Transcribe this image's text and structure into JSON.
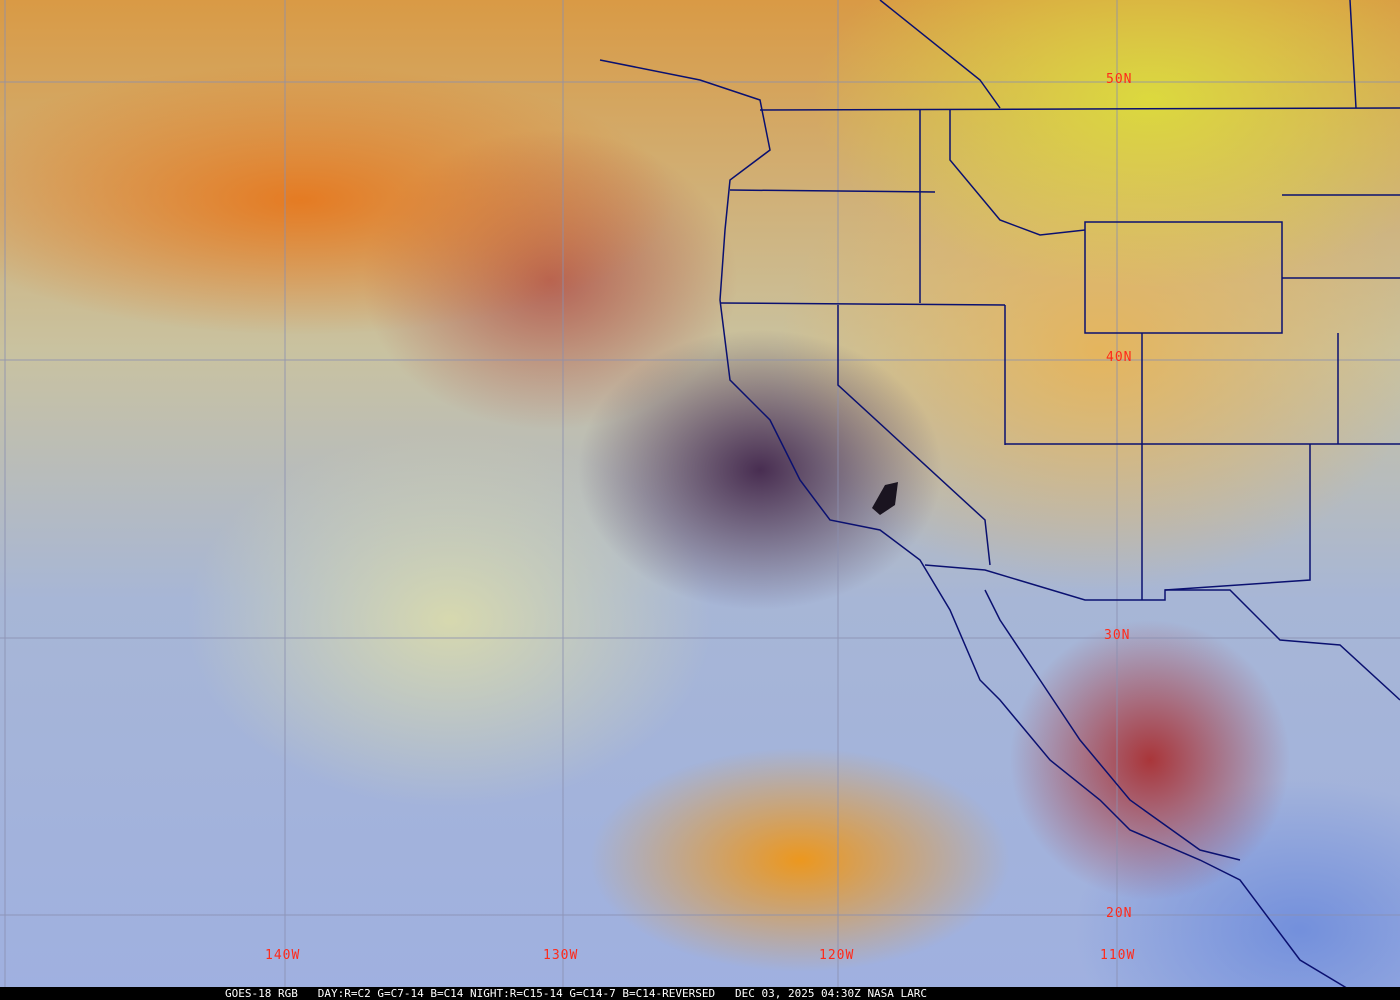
{
  "grid_labels": {
    "lat": [
      "50N",
      "40N",
      "30N",
      "20N"
    ],
    "lon": [
      "140W",
      "130W",
      "120W",
      "110W"
    ]
  },
  "caption": {
    "product": "GOES-18 RGB",
    "recipe": "DAY:R=C2 G=C7-14 B=C14 NIGHT:R=C15-14 G=C14-7 B=C14-REVERSED",
    "datetime": "DEC 03, 2025 04:30Z",
    "credit": "NASA LARC"
  },
  "colors": {
    "grid": "#8a8fb0",
    "border": "#0a1070",
    "label": "#ff2a1a"
  }
}
